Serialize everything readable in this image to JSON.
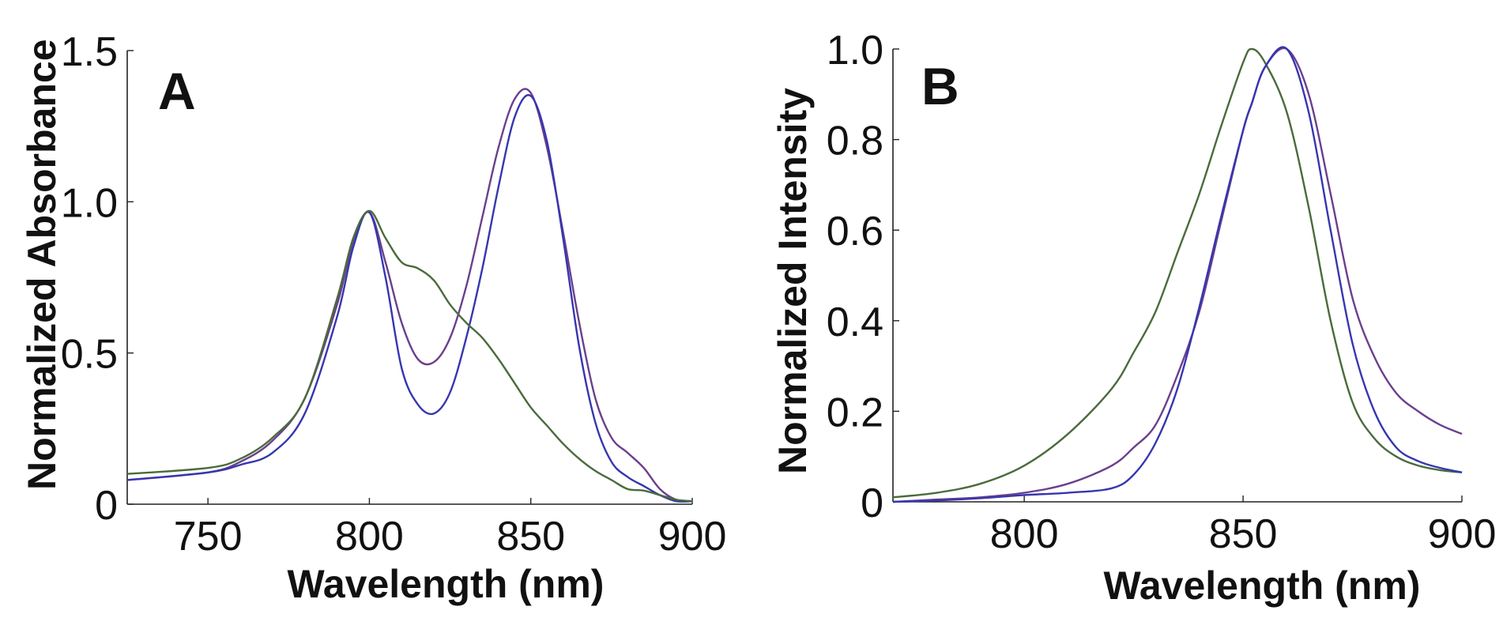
{
  "chart_data": [
    {
      "type": "line",
      "panel_label": "A",
      "xlabel": "Wavelength (nm)",
      "ylabel": "Normalized Absorbance",
      "xlim": [
        725,
        900
      ],
      "ylim": [
        0,
        1.5
      ],
      "xticks": [
        "750",
        "800",
        "850",
        "900"
      ],
      "yticks": [
        "0",
        "0.5",
        "1.0",
        "1.5"
      ],
      "grid": false,
      "x": [
        725,
        750,
        760,
        770,
        780,
        790,
        795,
        800,
        805,
        810,
        815,
        820,
        825,
        830,
        835,
        840,
        845,
        850,
        855,
        860,
        865,
        870,
        875,
        880,
        885,
        890,
        895,
        900
      ],
      "series": [
        {
          "color": "#6b3f8c",
          "values": [
            0.08,
            0.105,
            0.14,
            0.21,
            0.35,
            0.66,
            0.87,
            0.965,
            0.8,
            0.6,
            0.48,
            0.47,
            0.55,
            0.72,
            0.95,
            1.18,
            1.34,
            1.36,
            1.18,
            0.9,
            0.6,
            0.35,
            0.22,
            0.17,
            0.12,
            0.05,
            0.015,
            0.01
          ]
        },
        {
          "color": "#3636b0",
          "values": [
            0.08,
            0.105,
            0.13,
            0.17,
            0.3,
            0.62,
            0.85,
            0.965,
            0.75,
            0.45,
            0.33,
            0.3,
            0.37,
            0.55,
            0.78,
            1.05,
            1.28,
            1.35,
            1.2,
            0.88,
            0.52,
            0.27,
            0.14,
            0.09,
            0.06,
            0.03,
            0.01,
            0.01
          ]
        },
        {
          "color": "#4a6b3c",
          "values": [
            0.1,
            0.12,
            0.15,
            0.22,
            0.35,
            0.68,
            0.88,
            0.97,
            0.88,
            0.8,
            0.78,
            0.74,
            0.66,
            0.6,
            0.55,
            0.48,
            0.4,
            0.32,
            0.26,
            0.2,
            0.15,
            0.11,
            0.08,
            0.05,
            0.045,
            0.03,
            0.015,
            0.01
          ]
        }
      ]
    },
    {
      "type": "line",
      "panel_label": "B",
      "xlabel": "Wavelength (nm)",
      "ylabel": "Normalized Intensity",
      "xlim": [
        770,
        900
      ],
      "ylim": [
        0,
        1.0
      ],
      "xticks": [
        "800",
        "850",
        "900"
      ],
      "yticks": [
        "0",
        "0.2",
        "0.4",
        "0.6",
        "0.8",
        "1.0"
      ],
      "grid": false,
      "x": [
        770,
        780,
        790,
        800,
        810,
        820,
        825,
        830,
        835,
        840,
        845,
        850,
        852,
        855,
        860,
        865,
        870,
        875,
        880,
        885,
        890,
        895,
        900
      ],
      "series": [
        {
          "color": "#4a6b3c",
          "values": [
            0.01,
            0.02,
            0.04,
            0.08,
            0.15,
            0.25,
            0.33,
            0.42,
            0.55,
            0.68,
            0.83,
            0.97,
            1.0,
            0.97,
            0.86,
            0.65,
            0.4,
            0.22,
            0.14,
            0.1,
            0.08,
            0.07,
            0.065
          ]
        },
        {
          "color": "#6b3f8c",
          "values": [
            0.0,
            0.005,
            0.01,
            0.02,
            0.04,
            0.08,
            0.12,
            0.17,
            0.28,
            0.42,
            0.62,
            0.82,
            0.88,
            0.96,
            1.0,
            0.9,
            0.68,
            0.45,
            0.32,
            0.24,
            0.2,
            0.17,
            0.15
          ]
        },
        {
          "color": "#3636b0",
          "values": [
            0.0,
            0.003,
            0.008,
            0.015,
            0.02,
            0.03,
            0.06,
            0.13,
            0.25,
            0.43,
            0.63,
            0.82,
            0.88,
            0.96,
            1.0,
            0.86,
            0.6,
            0.35,
            0.2,
            0.12,
            0.09,
            0.075,
            0.065
          ]
        }
      ]
    }
  ]
}
